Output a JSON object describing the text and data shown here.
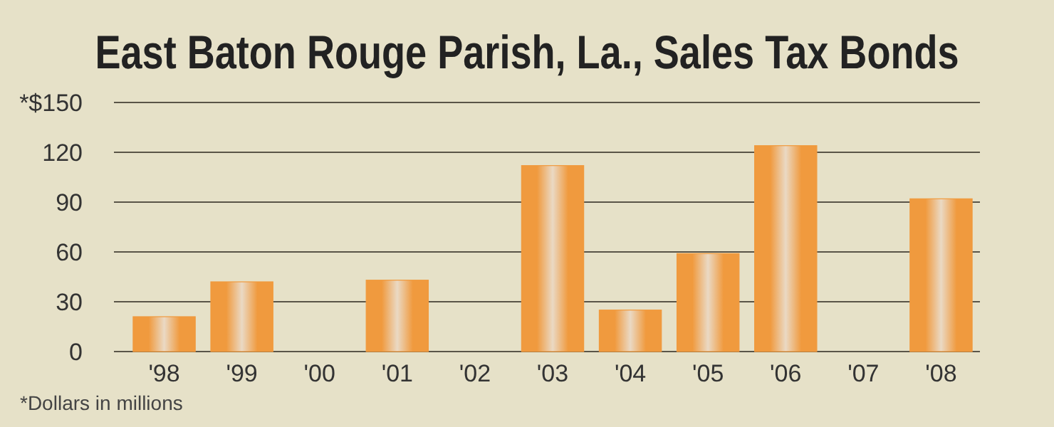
{
  "chart_data": {
    "type": "bar",
    "title": "East Baton Rouge Parish, La., Sales Tax Bonds",
    "categories": [
      "'98",
      "'99",
      "'00",
      "'01",
      "'02",
      "'03",
      "'04",
      "'05",
      "'06",
      "'07",
      "'08"
    ],
    "values": [
      21,
      42,
      0,
      43,
      0,
      112,
      25,
      59,
      124,
      0,
      92
    ],
    "color": "#f09a3e",
    "ylim": [
      0,
      150
    ],
    "yticks": [
      0,
      30,
      60,
      90,
      120,
      {
        "value": 150,
        "label": "*$150"
      }
    ],
    "grid": "y",
    "annotations": [
      "*Dollars in millions"
    ]
  }
}
